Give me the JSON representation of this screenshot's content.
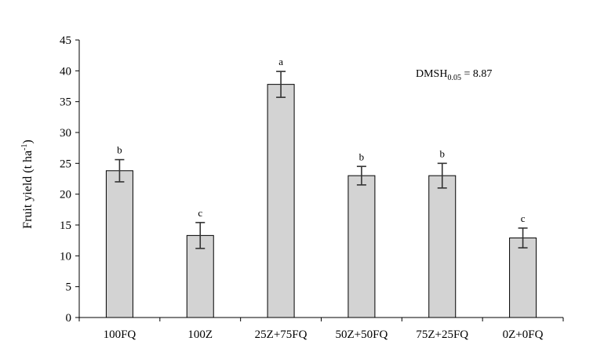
{
  "chart_data": {
    "type": "bar",
    "title": "",
    "xlabel": "",
    "ylabel": "Fruit yield (t ha",
    "ylabel_sup": "-1",
    "ylabel_close": ")",
    "ylim": [
      0,
      45
    ],
    "yticks": [
      0,
      5,
      10,
      15,
      20,
      25,
      30,
      35,
      40,
      45
    ],
    "grid": false,
    "categories": [
      "100FQ",
      "100Z",
      "25Z+75FQ",
      "50Z+50FQ",
      "75Z+25FQ",
      "0Z+0FQ"
    ],
    "series": [
      {
        "values": [
          23.8,
          13.3,
          37.8,
          23.0,
          23.0,
          12.9
        ],
        "errors": [
          1.8,
          2.1,
          2.1,
          1.5,
          2.0,
          1.6
        ],
        "significance_letters": [
          "b",
          "c",
          "a",
          "b",
          "b",
          "c"
        ],
        "color": "#d3d3d3"
      }
    ],
    "annotation": {
      "prefix": "DMSH",
      "subscript": "0.05",
      "suffix": " = 8.87"
    }
  }
}
